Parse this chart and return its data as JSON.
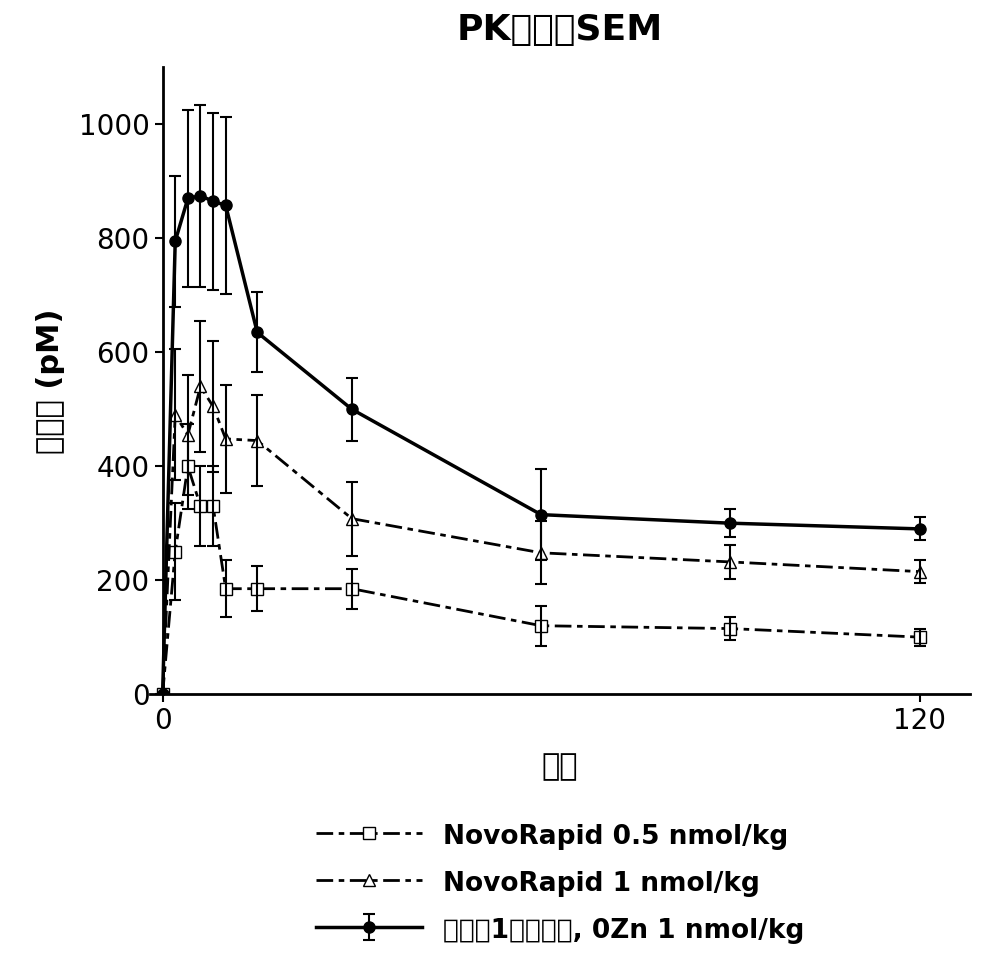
{
  "title": "PK平均值SEM",
  "xlabel": "分钟",
  "ylabel": "胰岛素 (pM)",
  "xlim": [
    -2,
    128
  ],
  "ylim": [
    0,
    1100
  ],
  "yticks": [
    0,
    200,
    400,
    600,
    800,
    1000
  ],
  "xticks": [
    0,
    120
  ],
  "series1": {
    "label": "实施例1的胰岛素, 0Zn 1 nmol/kg",
    "x": [
      0,
      2,
      4,
      6,
      8,
      10,
      15,
      30,
      60,
      90,
      120
    ],
    "y": [
      0,
      795,
      870,
      875,
      865,
      858,
      635,
      500,
      315,
      300,
      290
    ],
    "yerr": [
      0,
      115,
      155,
      160,
      155,
      155,
      70,
      55,
      80,
      25,
      20
    ],
    "linestyle": "-",
    "marker": "o",
    "color": "#000000",
    "linewidth": 2.5,
    "markersize": 8
  },
  "series2": {
    "label": "NovoRapid 0.5 nmol/kg",
    "x": [
      0,
      2,
      4,
      6,
      8,
      10,
      15,
      30,
      60,
      90,
      120
    ],
    "y": [
      0,
      250,
      400,
      330,
      330,
      185,
      185,
      185,
      120,
      115,
      100
    ],
    "yerr": [
      0,
      85,
      75,
      70,
      70,
      50,
      40,
      35,
      35,
      20,
      15
    ],
    "marker": "s",
    "color": "#000000",
    "linewidth": 2.0,
    "markersize": 8,
    "markerfacecolor": "white"
  },
  "series3": {
    "label": "NovoRapid 1 nmol/kg",
    "x": [
      0,
      2,
      4,
      6,
      8,
      10,
      15,
      30,
      60,
      90,
      120
    ],
    "y": [
      0,
      490,
      455,
      540,
      505,
      448,
      445,
      308,
      248,
      232,
      215
    ],
    "yerr": [
      0,
      115,
      105,
      115,
      115,
      95,
      80,
      65,
      55,
      30,
      20
    ],
    "marker": "^",
    "color": "#000000",
    "linewidth": 2.0,
    "markersize": 8,
    "markerfacecolor": "white"
  },
  "background_color": "#ffffff",
  "title_fontsize": 26,
  "label_fontsize": 22,
  "tick_fontsize": 20,
  "legend_fontsize": 19
}
